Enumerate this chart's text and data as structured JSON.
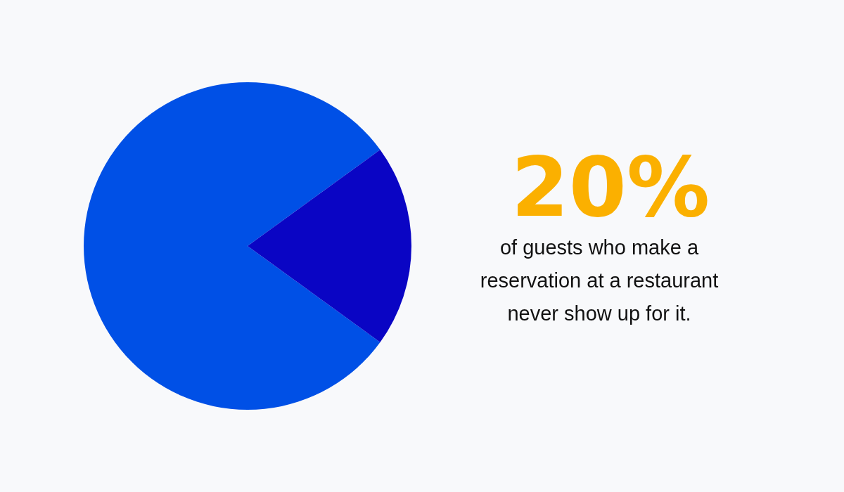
{
  "chart_data": {
    "type": "pie",
    "categories": [
      null,
      null
    ],
    "values": [
      80,
      20
    ],
    "colors": [
      "#0050e6",
      "#0a05c4"
    ],
    "annotations": [
      "20%",
      "of guests who make a reservation at a restaurant never show up for it."
    ]
  }
}
